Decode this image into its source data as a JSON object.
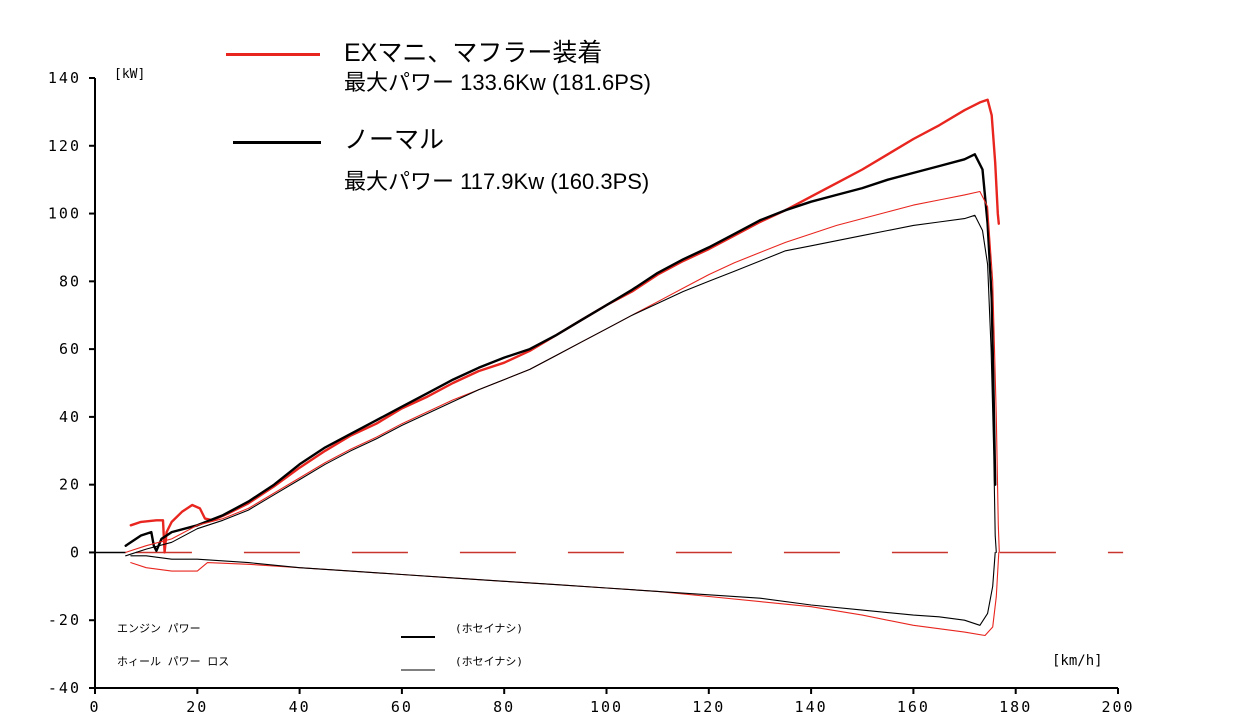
{
  "chart_data": {
    "type": "line",
    "x_unit_label": "[km/h]",
    "y_unit_label": "[kW]",
    "xlim": [
      0,
      200
    ],
    "ylim": [
      -40,
      140
    ],
    "x_ticks": [
      "0",
      "20",
      "40",
      "60",
      "80",
      "100",
      "120",
      "140",
      "160",
      "180",
      "200"
    ],
    "y_ticks": [
      "140",
      "120",
      "100",
      "80",
      "60",
      "40",
      "20",
      "0",
      "-20",
      "-40"
    ],
    "grid": false,
    "legend": {
      "position": "top",
      "entries": [
        {
          "name": "EXマニ、マフラー装着",
          "detail": "最大パワー 133.6Kw (181.6PS)",
          "color": "#e8261f"
        },
        {
          "name": "ノーマル",
          "detail": "最大パワー 117.9Kw (160.3PS)",
          "color": "#000000"
        }
      ]
    },
    "bottom_legend": [
      {
        "label": "エンジン パワー",
        "note": "(ホセイナシ)"
      },
      {
        "label": "ホィール パワー ロス",
        "note": "(ホセイナシ)"
      }
    ],
    "series": [
      {
        "name": "EXマニ、マフラー装着",
        "color": "#e8261f",
        "role": "engine-power",
        "points": [
          [
            7,
            8
          ],
          [
            9,
            9
          ],
          [
            12,
            9.5
          ],
          [
            13.3,
            9.5
          ],
          [
            13.6,
            0
          ],
          [
            14,
            6
          ],
          [
            15,
            9
          ],
          [
            17,
            12
          ],
          [
            19,
            14
          ],
          [
            20.5,
            13
          ],
          [
            21.5,
            10
          ],
          [
            23,
            9.5
          ],
          [
            26,
            11.5
          ],
          [
            30,
            14.5
          ],
          [
            35,
            19.5
          ],
          [
            40,
            25
          ],
          [
            45,
            30
          ],
          [
            50,
            34.5
          ],
          [
            55,
            38
          ],
          [
            60,
            42.5
          ],
          [
            65,
            46
          ],
          [
            70,
            50
          ],
          [
            75,
            53.5
          ],
          [
            80,
            56
          ],
          [
            85,
            59.5
          ],
          [
            90,
            64
          ],
          [
            95,
            68.5
          ],
          [
            100,
            73
          ],
          [
            105,
            77
          ],
          [
            110,
            82
          ],
          [
            115,
            86
          ],
          [
            120,
            89.5
          ],
          [
            125,
            93.5
          ],
          [
            130,
            97.5
          ],
          [
            135,
            101
          ],
          [
            140,
            105
          ],
          [
            145,
            109
          ],
          [
            150,
            113
          ],
          [
            155,
            117.5
          ],
          [
            160,
            122
          ],
          [
            165,
            126
          ],
          [
            170,
            130.5
          ],
          [
            173,
            132.8
          ],
          [
            174.5,
            133.6
          ],
          [
            175.3,
            129
          ],
          [
            176,
            115
          ],
          [
            176.5,
            100
          ],
          [
            176.7,
            97
          ]
        ]
      },
      {
        "name": "ノーマル",
        "color": "#000000",
        "role": "engine-power",
        "points": [
          [
            6,
            2
          ],
          [
            9,
            5
          ],
          [
            11,
            6
          ],
          [
            11.5,
            2
          ],
          [
            12,
            0.5
          ],
          [
            13,
            4
          ],
          [
            15,
            6
          ],
          [
            20,
            8
          ],
          [
            25,
            11
          ],
          [
            30,
            15
          ],
          [
            35,
            20
          ],
          [
            40,
            26
          ],
          [
            45,
            31
          ],
          [
            50,
            35
          ],
          [
            55,
            39
          ],
          [
            60,
            43
          ],
          [
            65,
            47
          ],
          [
            70,
            51
          ],
          [
            75,
            54.5
          ],
          [
            80,
            57.5
          ],
          [
            85,
            60
          ],
          [
            90,
            64
          ],
          [
            95,
            68.5
          ],
          [
            100,
            73
          ],
          [
            105,
            77.5
          ],
          [
            110,
            82.5
          ],
          [
            115,
            86.5
          ],
          [
            120,
            90
          ],
          [
            125,
            94
          ],
          [
            130,
            98
          ],
          [
            135,
            101
          ],
          [
            140,
            103.5
          ],
          [
            145,
            105.5
          ],
          [
            150,
            107.5
          ],
          [
            155,
            110
          ],
          [
            160,
            112
          ],
          [
            165,
            114
          ],
          [
            170,
            116
          ],
          [
            172,
            117.5
          ],
          [
            173.5,
            113
          ],
          [
            174.5,
            97
          ],
          [
            175.3,
            75
          ],
          [
            175.7,
            45
          ],
          [
            176,
            20
          ]
        ]
      },
      {
        "name": "EXマニ、マフラー装着 (ホイール)",
        "color": "#e8261f",
        "role": "wheel-power",
        "points": [
          [
            6,
            0
          ],
          [
            10,
            2
          ],
          [
            15,
            4
          ],
          [
            20,
            8
          ],
          [
            25,
            10
          ],
          [
            30,
            13
          ],
          [
            35,
            17.5
          ],
          [
            40,
            22
          ],
          [
            45,
            26.5
          ],
          [
            50,
            30.5
          ],
          [
            55,
            34
          ],
          [
            60,
            38
          ],
          [
            65,
            41.5
          ],
          [
            70,
            45
          ],
          [
            75,
            48
          ],
          [
            80,
            51
          ],
          [
            85,
            54
          ],
          [
            90,
            58
          ],
          [
            95,
            62
          ],
          [
            100,
            66
          ],
          [
            105,
            70
          ],
          [
            110,
            74
          ],
          [
            115,
            78
          ],
          [
            120,
            82
          ],
          [
            125,
            85.5
          ],
          [
            130,
            88.5
          ],
          [
            135,
            91.5
          ],
          [
            140,
            94
          ],
          [
            145,
            96.5
          ],
          [
            150,
            98.5
          ],
          [
            155,
            100.5
          ],
          [
            160,
            102.5
          ],
          [
            165,
            104
          ],
          [
            170,
            105.5
          ],
          [
            173,
            106.5
          ],
          [
            174.5,
            102
          ],
          [
            175.5,
            80
          ],
          [
            176.2,
            40
          ],
          [
            176.6,
            8
          ],
          [
            176.8,
            0
          ]
        ]
      },
      {
        "name": "ノーマル (ホイール)",
        "color": "#000000",
        "role": "wheel-power",
        "points": [
          [
            6,
            -1
          ],
          [
            10,
            1
          ],
          [
            15,
            3
          ],
          [
            20,
            7
          ],
          [
            25,
            9.5
          ],
          [
            30,
            12.5
          ],
          [
            35,
            17
          ],
          [
            40,
            21.5
          ],
          [
            45,
            26
          ],
          [
            50,
            30
          ],
          [
            55,
            33.5
          ],
          [
            60,
            37.5
          ],
          [
            65,
            41
          ],
          [
            70,
            44.5
          ],
          [
            75,
            48
          ],
          [
            80,
            51
          ],
          [
            85,
            54
          ],
          [
            90,
            58
          ],
          [
            95,
            62
          ],
          [
            100,
            66
          ],
          [
            105,
            70
          ],
          [
            110,
            73.5
          ],
          [
            115,
            77
          ],
          [
            120,
            80
          ],
          [
            125,
            83
          ],
          [
            130,
            86
          ],
          [
            135,
            89
          ],
          [
            140,
            90.5
          ],
          [
            145,
            92
          ],
          [
            150,
            93.5
          ],
          [
            155,
            95
          ],
          [
            160,
            96.5
          ],
          [
            165,
            97.5
          ],
          [
            170,
            98.5
          ],
          [
            172,
            99.5
          ],
          [
            173.5,
            95
          ],
          [
            174.5,
            85
          ],
          [
            175.2,
            60
          ],
          [
            175.7,
            30
          ],
          [
            176,
            5
          ],
          [
            176.2,
            0
          ]
        ]
      },
      {
        "name": "EXマニ、マフラー装着 (ロス)",
        "color": "#e8261f",
        "role": "wheel-power-loss",
        "points": [
          [
            7,
            -3
          ],
          [
            10,
            -4.5
          ],
          [
            15,
            -5.5
          ],
          [
            20,
            -5.5
          ],
          [
            22,
            -3
          ],
          [
            30,
            -3.5
          ],
          [
            40,
            -4.5
          ],
          [
            50,
            -5.5
          ],
          [
            60,
            -6.5
          ],
          [
            70,
            -7.5
          ],
          [
            80,
            -8.5
          ],
          [
            90,
            -9.5
          ],
          [
            100,
            -10.5
          ],
          [
            110,
            -11.5
          ],
          [
            120,
            -13
          ],
          [
            130,
            -14.5
          ],
          [
            140,
            -16
          ],
          [
            150,
            -18.5
          ],
          [
            160,
            -21.5
          ],
          [
            170,
            -23.5
          ],
          [
            174,
            -24.5
          ],
          [
            175.5,
            -22
          ],
          [
            176.2,
            -13
          ],
          [
            176.7,
            0
          ]
        ]
      },
      {
        "name": "ノーマル (ロス)",
        "color": "#000000",
        "role": "wheel-power-loss",
        "points": [
          [
            7,
            -1
          ],
          [
            10,
            -1
          ],
          [
            15,
            -2
          ],
          [
            20,
            -2
          ],
          [
            30,
            -3
          ],
          [
            40,
            -4.5
          ],
          [
            50,
            -5.5
          ],
          [
            60,
            -6.5
          ],
          [
            70,
            -7.5
          ],
          [
            80,
            -8.5
          ],
          [
            90,
            -9.5
          ],
          [
            100,
            -10.5
          ],
          [
            110,
            -11.5
          ],
          [
            120,
            -12.5
          ],
          [
            130,
            -13.5
          ],
          [
            140,
            -15.5
          ],
          [
            150,
            -17
          ],
          [
            160,
            -18.5
          ],
          [
            165,
            -19
          ],
          [
            170,
            -20
          ],
          [
            173,
            -21.5
          ],
          [
            174.5,
            -18
          ],
          [
            175.5,
            -10
          ],
          [
            176,
            0
          ]
        ]
      }
    ]
  }
}
